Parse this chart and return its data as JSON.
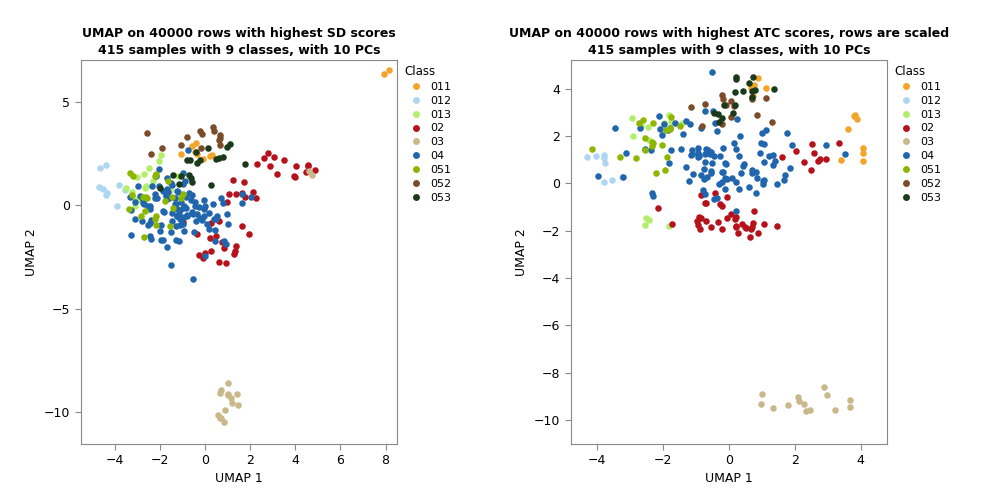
{
  "title1": "UMAP on 40000 rows with highest SD scores\n415 samples with 9 classes, with 10 PCs",
  "title2": "UMAP on 40000 rows with highest ATC scores, rows are scaled\n415 samples with 9 classes, with 10 PCs",
  "xlabel": "UMAP 1",
  "ylabel": "UMAP 2",
  "legend_title": "Class",
  "classes": [
    "011",
    "012",
    "013",
    "02",
    "03",
    "04",
    "051",
    "052",
    "053"
  ],
  "colors": {
    "011": "#F4A42A",
    "012": "#AED6F1",
    "013": "#B3EE6A",
    "02": "#B5121B",
    "03": "#C8B88A",
    "04": "#2166AC",
    "051": "#8DB600",
    "052": "#7B4B2A",
    "053": "#1A3A1A"
  },
  "plot1": {
    "xlim": [
      -5.5,
      8.5
    ],
    "ylim": [
      -11.5,
      7.0
    ],
    "xticks": [
      -4,
      -2,
      0,
      2,
      4,
      6,
      8
    ],
    "yticks": [
      -10,
      -5,
      0,
      5
    ]
  },
  "plot2": {
    "xlim": [
      -4.8,
      4.8
    ],
    "ylim": [
      -11.0,
      5.2
    ],
    "xticks": [
      -4,
      -2,
      0,
      2,
      4
    ],
    "yticks": [
      -10,
      -8,
      -6,
      -4,
      -2,
      0,
      2,
      4
    ]
  },
  "point_size": 22,
  "bg_color": "#FFFFFF",
  "panel_bg": "#FFFFFF"
}
